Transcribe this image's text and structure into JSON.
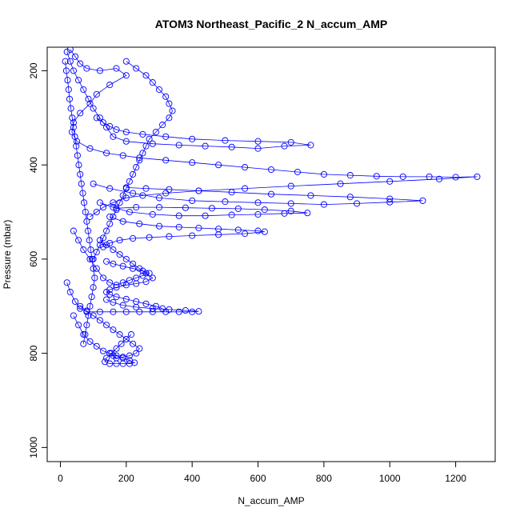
{
  "chart_data": {
    "type": "scatter",
    "title": "ATOM3 Northeast_Pacific_2 N_accum_AMP",
    "xlabel": "N_accum_AMP",
    "ylabel": "Pressure (mbar)",
    "xlim": [
      -40,
      1320
    ],
    "ylim": [
      1030,
      150
    ],
    "y_reversed": true,
    "x_ticks": [
      0,
      200,
      400,
      600,
      800,
      1000,
      1200
    ],
    "y_ticks": [
      200,
      400,
      600,
      800,
      1000
    ],
    "grid": false,
    "marker": "open-circle",
    "connected": true,
    "color": "#0000ff",
    "series": [
      {
        "points": [
          [
            30,
            155
          ],
          [
            45,
            170
          ],
          [
            60,
            185
          ],
          [
            80,
            195
          ],
          [
            120,
            200
          ],
          [
            170,
            195
          ],
          [
            200,
            210
          ],
          [
            150,
            230
          ],
          [
            110,
            250
          ],
          [
            90,
            270
          ],
          [
            60,
            290
          ],
          [
            40,
            310
          ],
          [
            35,
            330
          ],
          [
            50,
            350
          ],
          [
            90,
            365
          ],
          [
            140,
            375
          ],
          [
            190,
            380
          ],
          [
            240,
            385
          ],
          [
            320,
            390
          ],
          [
            400,
            395
          ],
          [
            480,
            400
          ],
          [
            560,
            405
          ],
          [
            640,
            410
          ],
          [
            720,
            415
          ],
          [
            800,
            420
          ],
          [
            880,
            422
          ],
          [
            960,
            424
          ],
          [
            1040,
            425
          ],
          [
            1120,
            425
          ],
          [
            1200,
            426
          ],
          [
            1265,
            425
          ],
          [
            1150,
            430
          ],
          [
            1000,
            435
          ],
          [
            850,
            440
          ],
          [
            700,
            445
          ],
          [
            560,
            450
          ],
          [
            420,
            455
          ],
          [
            320,
            460
          ],
          [
            250,
            465
          ],
          [
            200,
            470
          ],
          [
            160,
            480
          ],
          [
            130,
            490
          ],
          [
            110,
            500
          ],
          [
            90,
            510
          ]
        ]
      },
      {
        "points": [
          [
            20,
            160
          ],
          [
            30,
            180
          ],
          [
            40,
            200
          ],
          [
            55,
            220
          ],
          [
            70,
            240
          ],
          [
            85,
            260
          ],
          [
            100,
            280
          ],
          [
            120,
            300
          ],
          [
            140,
            320
          ],
          [
            160,
            340
          ],
          [
            200,
            350
          ],
          [
            280,
            355
          ],
          [
            360,
            358
          ],
          [
            440,
            360
          ],
          [
            520,
            362
          ],
          [
            600,
            365
          ],
          [
            680,
            360
          ],
          [
            760,
            358
          ],
          [
            700,
            352
          ],
          [
            600,
            350
          ],
          [
            500,
            348
          ],
          [
            400,
            345
          ],
          [
            320,
            340
          ],
          [
            250,
            335
          ],
          [
            200,
            330
          ],
          [
            170,
            325
          ],
          [
            150,
            318
          ],
          [
            130,
            310
          ],
          [
            110,
            300
          ]
        ]
      },
      {
        "points": [
          [
            100,
            440
          ],
          [
            150,
            450
          ],
          [
            220,
            460
          ],
          [
            300,
            470
          ],
          [
            400,
            476
          ],
          [
            500,
            478
          ],
          [
            600,
            480
          ],
          [
            700,
            482
          ],
          [
            800,
            484
          ],
          [
            900,
            482
          ],
          [
            1000,
            479
          ],
          [
            1100,
            476
          ],
          [
            1000,
            472
          ],
          [
            880,
            468
          ],
          [
            760,
            465
          ],
          [
            640,
            462
          ],
          [
            520,
            458
          ],
          [
            420,
            455
          ],
          [
            330,
            452
          ],
          [
            260,
            450
          ],
          [
            200,
            448
          ]
        ]
      },
      {
        "points": [
          [
            120,
            480
          ],
          [
            160,
            490
          ],
          [
            210,
            500
          ],
          [
            280,
            505
          ],
          [
            360,
            508
          ],
          [
            440,
            508
          ],
          [
            520,
            506
          ],
          [
            600,
            505
          ],
          [
            680,
            503
          ],
          [
            750,
            502
          ],
          [
            700,
            498
          ],
          [
            620,
            495
          ],
          [
            540,
            493
          ],
          [
            460,
            492
          ],
          [
            380,
            491
          ],
          [
            300,
            490
          ],
          [
            230,
            490
          ],
          [
            170,
            492
          ]
        ]
      },
      {
        "points": [
          [
            150,
            510
          ],
          [
            190,
            520
          ],
          [
            240,
            525
          ],
          [
            300,
            530
          ],
          [
            360,
            532
          ],
          [
            420,
            534
          ],
          [
            480,
            536
          ],
          [
            540,
            538
          ],
          [
            600,
            540
          ],
          [
            620,
            542
          ],
          [
            560,
            546
          ],
          [
            480,
            548
          ],
          [
            400,
            550
          ],
          [
            330,
            552
          ],
          [
            270,
            554
          ],
          [
            220,
            556
          ],
          [
            180,
            560
          ],
          [
            150,
            566
          ],
          [
            130,
            574
          ]
        ]
      },
      {
        "points": [
          [
            40,
            540
          ],
          [
            55,
            560
          ],
          [
            70,
            580
          ],
          [
            90,
            600
          ],
          [
            110,
            620
          ],
          [
            130,
            640
          ],
          [
            150,
            650
          ],
          [
            170,
            655
          ],
          [
            190,
            650
          ],
          [
            210,
            645
          ],
          [
            230,
            640
          ],
          [
            250,
            635
          ],
          [
            270,
            630
          ],
          [
            250,
            625
          ],
          [
            220,
            620
          ],
          [
            190,
            615
          ],
          [
            160,
            610
          ],
          [
            140,
            605
          ]
        ]
      },
      {
        "points": [
          [
            20,
            650
          ],
          [
            30,
            670
          ],
          [
            45,
            690
          ],
          [
            60,
            705
          ],
          [
            80,
            712
          ],
          [
            120,
            712
          ],
          [
            160,
            712
          ],
          [
            200,
            712
          ],
          [
            240,
            712
          ],
          [
            280,
            712
          ],
          [
            320,
            712
          ],
          [
            360,
            712
          ],
          [
            400,
            712
          ],
          [
            420,
            711
          ],
          [
            380,
            709
          ],
          [
            330,
            707
          ],
          [
            280,
            705
          ],
          [
            230,
            702
          ],
          [
            190,
            698
          ],
          [
            160,
            692
          ],
          [
            140,
            686
          ]
        ]
      },
      {
        "points": [
          [
            40,
            720
          ],
          [
            55,
            740
          ],
          [
            70,
            760
          ],
          [
            90,
            775
          ],
          [
            110,
            785
          ],
          [
            130,
            795
          ],
          [
            150,
            800
          ],
          [
            170,
            805
          ],
          [
            190,
            810
          ],
          [
            210,
            815
          ],
          [
            225,
            820
          ],
          [
            210,
            822
          ],
          [
            190,
            822
          ],
          [
            170,
            822
          ],
          [
            150,
            822
          ],
          [
            135,
            818
          ],
          [
            140,
            810
          ],
          [
            155,
            800
          ],
          [
            170,
            790
          ],
          [
            185,
            780
          ],
          [
            200,
            770
          ],
          [
            215,
            760
          ]
        ]
      },
      {
        "points": [
          [
            15,
            180
          ],
          [
            18,
            200
          ],
          [
            22,
            220
          ],
          [
            25,
            240
          ],
          [
            28,
            260
          ],
          [
            32,
            280
          ],
          [
            36,
            300
          ],
          [
            40,
            320
          ],
          [
            44,
            340
          ],
          [
            48,
            360
          ],
          [
            52,
            380
          ],
          [
            56,
            400
          ],
          [
            60,
            420
          ],
          [
            64,
            440
          ],
          [
            68,
            460
          ],
          [
            72,
            480
          ],
          [
            76,
            500
          ],
          [
            80,
            520
          ],
          [
            84,
            540
          ],
          [
            88,
            560
          ],
          [
            92,
            580
          ],
          [
            96,
            600
          ],
          [
            100,
            620
          ],
          [
            104,
            640
          ],
          [
            100,
            660
          ],
          [
            95,
            680
          ],
          [
            90,
            700
          ],
          [
            85,
            720
          ],
          [
            80,
            740
          ],
          [
            75,
            760
          ],
          [
            70,
            780
          ]
        ]
      },
      {
        "points": [
          [
            200,
            180
          ],
          [
            230,
            195
          ],
          [
            260,
            210
          ],
          [
            280,
            225
          ],
          [
            300,
            240
          ],
          [
            320,
            255
          ],
          [
            330,
            270
          ],
          [
            340,
            285
          ],
          [
            330,
            300
          ],
          [
            310,
            315
          ],
          [
            290,
            330
          ],
          [
            270,
            345
          ],
          [
            260,
            360
          ],
          [
            250,
            375
          ],
          [
            240,
            390
          ],
          [
            230,
            405
          ],
          [
            220,
            420
          ],
          [
            210,
            435
          ],
          [
            200,
            450
          ],
          [
            190,
            465
          ],
          [
            180,
            480
          ],
          [
            170,
            495
          ],
          [
            160,
            510
          ],
          [
            150,
            525
          ],
          [
            140,
            540
          ],
          [
            130,
            555
          ],
          [
            120,
            570
          ],
          [
            110,
            585
          ],
          [
            100,
            600
          ]
        ]
      },
      {
        "points": [
          [
            120,
            560
          ],
          [
            140,
            570
          ],
          [
            160,
            580
          ],
          [
            180,
            590
          ],
          [
            200,
            600
          ],
          [
            220,
            610
          ],
          [
            240,
            620
          ],
          [
            260,
            630
          ],
          [
            280,
            640
          ],
          [
            260,
            648
          ],
          [
            230,
            652
          ],
          [
            200,
            655
          ],
          [
            170,
            660
          ],
          [
            150,
            665
          ],
          [
            140,
            670
          ],
          [
            150,
            675
          ],
          [
            170,
            680
          ],
          [
            200,
            685
          ],
          [
            230,
            690
          ],
          [
            260,
            695
          ],
          [
            290,
            700
          ],
          [
            310,
            705
          ]
        ]
      },
      {
        "points": [
          [
            60,
            700
          ],
          [
            80,
            710
          ],
          [
            100,
            720
          ],
          [
            120,
            730
          ],
          [
            140,
            740
          ],
          [
            160,
            750
          ],
          [
            180,
            760
          ],
          [
            200,
            770
          ],
          [
            220,
            780
          ],
          [
            240,
            790
          ],
          [
            230,
            800
          ],
          [
            210,
            805
          ],
          [
            190,
            808
          ],
          [
            170,
            810
          ],
          [
            160,
            805
          ],
          [
            150,
            800
          ]
        ]
      }
    ]
  }
}
